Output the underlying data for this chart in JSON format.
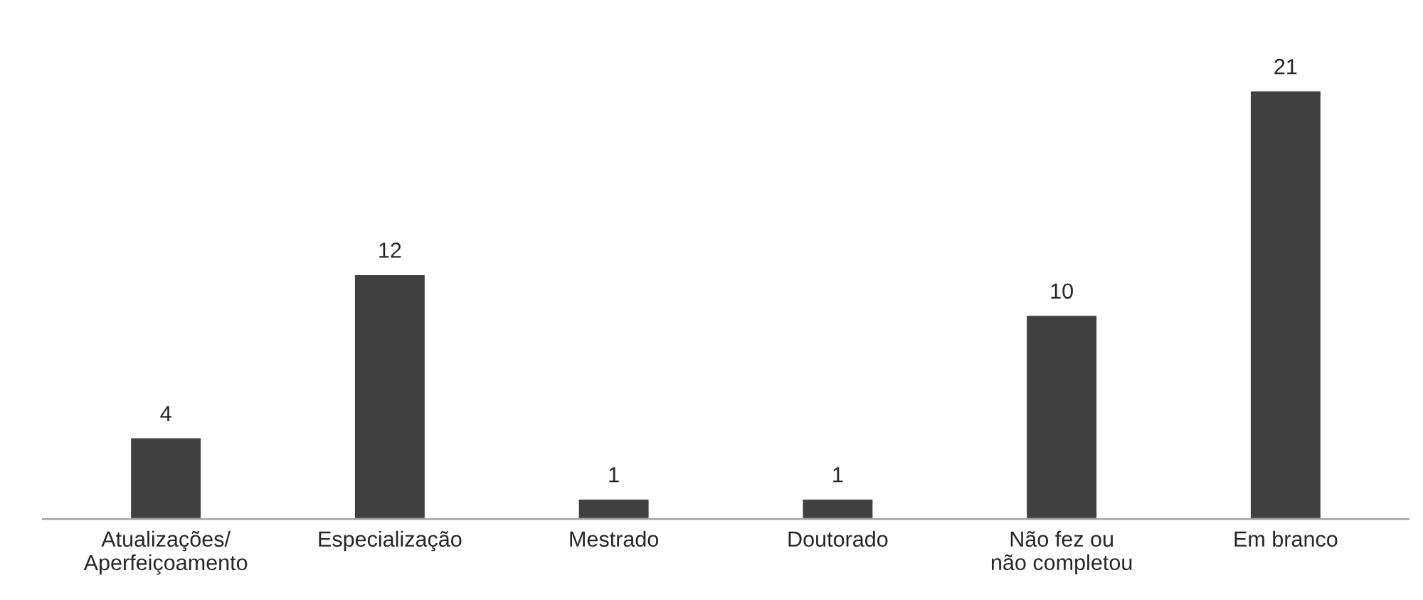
{
  "chart_data": {
    "type": "bar",
    "categories": [
      "Atualizações/\nAperfeiçoamento",
      "Especialização",
      "Mestrado",
      "Doutorado",
      "Não fez ou\nnão completou",
      "Em branco"
    ],
    "values": [
      4,
      12,
      1,
      1,
      10,
      21
    ],
    "color": "#404040",
    "data_labels": true,
    "tick_labels": "x",
    "grid": false,
    "legend": false
  }
}
